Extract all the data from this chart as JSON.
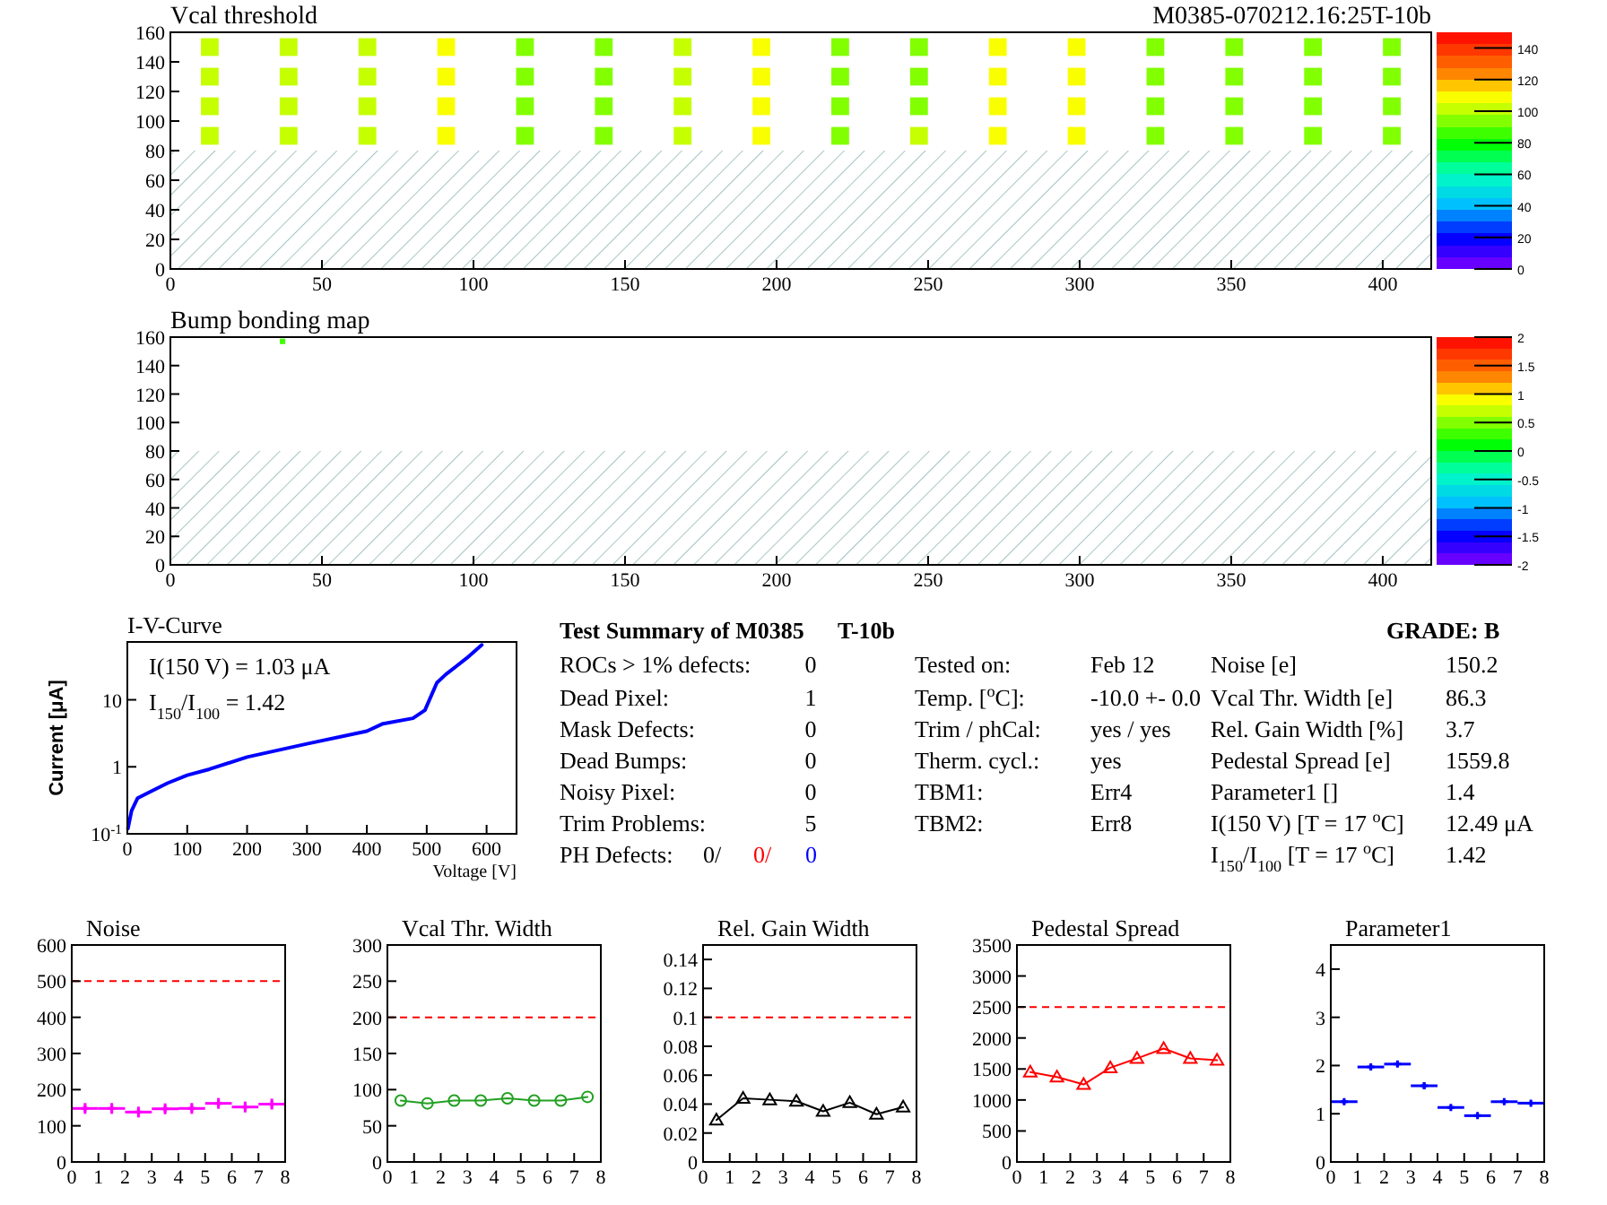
{
  "chart_data": [
    {
      "type": "scatter",
      "title": "Vcal threshold",
      "subtitle": "M0385-070212.16:25T-10b",
      "xlim": [
        0,
        416
      ],
      "ylim": [
        0,
        160
      ],
      "xticks": [
        0,
        50,
        100,
        150,
        200,
        250,
        300,
        350,
        400
      ],
      "yticks": [
        0,
        20,
        40,
        60,
        80,
        100,
        120,
        140,
        160
      ],
      "clim": [
        0,
        150
      ],
      "cticks": [
        0,
        20,
        40,
        60,
        80,
        100,
        120,
        140
      ],
      "marker": "square",
      "x": [
        13,
        39,
        65,
        91,
        117,
        143,
        169,
        195,
        221,
        247,
        273,
        299,
        325,
        351,
        377,
        403,
        13,
        39,
        65,
        91,
        117,
        143,
        169,
        195,
        221,
        247,
        273,
        299,
        325,
        351,
        377,
        403,
        13,
        39,
        65,
        91,
        117,
        143,
        169,
        195,
        221,
        247,
        273,
        299,
        325,
        351,
        377,
        403,
        13,
        39,
        65,
        91,
        117,
        143,
        169,
        195,
        221,
        247,
        273,
        299,
        325,
        351,
        377,
        403
      ],
      "values": [
        150,
        150,
        150,
        150,
        150,
        150,
        150,
        150,
        150,
        150,
        150,
        150,
        150,
        150,
        150,
        150,
        130,
        130,
        130,
        130,
        130,
        130,
        130,
        130,
        130,
        130,
        130,
        130,
        130,
        130,
        130,
        130,
        110,
        110,
        110,
        110,
        110,
        110,
        110,
        110,
        110,
        110,
        110,
        110,
        110,
        110,
        110,
        110,
        90,
        90,
        90,
        90,
        90,
        90,
        90,
        90,
        90,
        90,
        90,
        90,
        90,
        90,
        90,
        90
      ],
      "cvalues": [
        100,
        99,
        102,
        107,
        92,
        91,
        100,
        107,
        96,
        97,
        107,
        112,
        93,
        92,
        95,
        96,
        99,
        98,
        101,
        106,
        91,
        90,
        99,
        106,
        95,
        96,
        106,
        111,
        92,
        91,
        94,
        95,
        100,
        98,
        102,
        107,
        91,
        91,
        100,
        106,
        96,
        97,
        107,
        111,
        92,
        92,
        95,
        96,
        101,
        99,
        103,
        108,
        92,
        92,
        101,
        107,
        97,
        98,
        108,
        112,
        93,
        93,
        96,
        97
      ],
      "bands": [
        {
          "axis": "y",
          "from": 0,
          "to": 80,
          "color": "#a8c4c4"
        }
      ]
    },
    {
      "type": "scatter",
      "title": "Bump bonding map",
      "xlim": [
        0,
        416
      ],
      "ylim": [
        0,
        160
      ],
      "xticks": [
        0,
        50,
        100,
        150,
        200,
        250,
        300,
        350,
        400
      ],
      "yticks": [
        0,
        20,
        40,
        60,
        80,
        100,
        120,
        140,
        160
      ],
      "clim": [
        -2,
        2
      ],
      "cticks": [
        -2,
        -1.5,
        -1,
        -0.5,
        0,
        0.5,
        1,
        1.5,
        2
      ],
      "marker": "square",
      "x": [
        37
      ],
      "values": [
        157
      ],
      "cvalues": [
        0.3
      ],
      "bands": [
        {
          "axis": "y",
          "from": 0,
          "to": 80,
          "color": "#a8c4c4"
        }
      ]
    },
    {
      "type": "line",
      "title": "I-V-Curve",
      "xlabel": "Voltage [V]",
      "ylabel": "Current [μA]",
      "log": "y",
      "xlim": [
        0,
        650
      ],
      "ylim": [
        0.1,
        73
      ],
      "xticks": [
        0,
        100,
        200,
        300,
        400,
        500,
        600
      ],
      "yticks": [
        {
          "value": 0.1,
          "label": "10$^{-1}$"
        },
        1,
        10
      ],
      "annotations": [
        "I(150 V) = 1.03 μA",
        "I$_{150}$/I$_{100}$ =  1.42"
      ],
      "series": [
        {
          "color": "#0000ff",
          "x": [
            1,
            7,
            17,
            37,
            67,
            100,
            137,
            200,
            300,
            400,
            427,
            477,
            497,
            517,
            532,
            567,
            592
          ],
          "values": [
            0.12,
            0.22,
            0.34,
            0.42,
            0.57,
            0.75,
            0.92,
            1.4,
            2.2,
            3.4,
            4.4,
            5.3,
            7.0,
            18,
            24,
            42,
            66
          ]
        }
      ]
    },
    {
      "type": "other",
      "title": "Test Summary of M0385",
      "subtitle": "T-10b",
      "annotations": [
        "GRADE:  B",
        "ROCs > 1% defects:",
        "Dead Pixel:",
        "Mask Defects:",
        "Dead Bumps:",
        "Noisy Pixel:",
        "Trim Problems:",
        "PH Defects:",
        "0",
        "1",
        "0",
        "0",
        "0",
        "5",
        "0/",
        "0/",
        "0",
        "Tested on:",
        "Temp. [$^{o}$C]:",
        "Trim / phCal:",
        "Therm. cycl.:",
        "TBM1:",
        "TBM2:",
        "Feb 12",
        "-10.0 +- 0.0",
        "yes / yes",
        "yes",
        "Err4",
        "Err8",
        "Noise [e]",
        "Vcal Thr. Width [e]",
        "Rel. Gain Width [%]",
        "Pedestal Spread [e]",
        "Parameter1 []",
        "I(150 V) [T = 17 $^{o}$C]",
        "I$_{150}$/I$_{100}$  [T = 17 $^{o}$C]",
        "150.2",
        "86.3",
        "3.7",
        "1559.8",
        "1.4",
        "12.49 μA",
        "1.42"
      ]
    },
    {
      "type": "scatter",
      "title": "Noise",
      "xlim": [
        0,
        8
      ],
      "ylim": [
        0,
        600
      ],
      "xticks": [
        0,
        1,
        2,
        3,
        4,
        5,
        6,
        7,
        8
      ],
      "yticks": [
        0,
        100,
        200,
        300,
        400,
        500,
        600
      ],
      "ref_lines": [
        {
          "axis": "y",
          "value": 500,
          "color": "#ff0000",
          "line_style": "dashed"
        }
      ],
      "marker": "cross",
      "x": [
        0.5,
        1.5,
        2.5,
        3.5,
        4.5,
        5.5,
        6.5,
        7.5
      ],
      "values": [
        148,
        148,
        138,
        147,
        148,
        162,
        152,
        160
      ],
      "color": "#ff00ff",
      "errors": [
        15,
        15,
        15,
        15,
        15,
        15,
        15,
        15
      ],
      "xerrors": [
        0.5,
        0.5,
        0.5,
        0.5,
        0.5,
        0.5,
        0.5,
        0.5
      ]
    },
    {
      "type": "line",
      "title": "Vcal Thr. Width",
      "xlim": [
        0,
        8
      ],
      "ylim": [
        0,
        300
      ],
      "xticks": [
        0,
        1,
        2,
        3,
        4,
        5,
        6,
        7,
        8
      ],
      "yticks": [
        0,
        50,
        100,
        150,
        200,
        250,
        300
      ],
      "marker": "circle",
      "ref_lines": [
        {
          "axis": "y",
          "value": 200,
          "color": "#ff0000",
          "line_style": "dashed"
        }
      ],
      "x": [
        0.5,
        1.5,
        2.5,
        3.5,
        4.5,
        5.5,
        6.5,
        7.5
      ],
      "values": [
        85,
        81,
        85,
        85,
        88,
        85,
        85,
        90
      ],
      "color": "#22a022"
    },
    {
      "type": "line",
      "title": "Rel. Gain Width",
      "xlim": [
        0,
        8
      ],
      "ylim": [
        0,
        0.15
      ],
      "xticks": [
        0,
        1,
        2,
        3,
        4,
        5,
        6,
        7,
        8
      ],
      "yticks": [
        0,
        0.02,
        0.04,
        0.06,
        0.08,
        0.1,
        0.12,
        0.14
      ],
      "marker": "triangle",
      "ref_lines": [
        {
          "axis": "y",
          "value": 0.1,
          "color": "#ff0000",
          "line_style": "dashed"
        }
      ],
      "x": [
        0.5,
        1.5,
        2.5,
        3.5,
        4.5,
        5.5,
        6.5,
        7.5
      ],
      "values": [
        0.029,
        0.044,
        0.043,
        0.042,
        0.035,
        0.041,
        0.033,
        0.038
      ],
      "color": "#000000"
    },
    {
      "type": "line",
      "title": "Pedestal Spread",
      "xlim": [
        0,
        8
      ],
      "ylim": [
        0,
        3500
      ],
      "xticks": [
        0,
        1,
        2,
        3,
        4,
        5,
        6,
        7,
        8
      ],
      "yticks": [
        0,
        500,
        1000,
        1500,
        2000,
        2500,
        3000,
        3500
      ],
      "marker": "triangle",
      "ref_lines": [
        {
          "axis": "y",
          "value": 2500,
          "color": "#ff0000",
          "line_style": "dashed"
        }
      ],
      "x": [
        0.5,
        1.5,
        2.5,
        3.5,
        4.5,
        5.5,
        6.5,
        7.5
      ],
      "values": [
        1450,
        1370,
        1250,
        1520,
        1670,
        1830,
        1670,
        1640
      ],
      "color": "#ff0000"
    },
    {
      "type": "scatter",
      "title": "Parameter1",
      "xlim": [
        0,
        8
      ],
      "ylim": [
        0,
        4.5
      ],
      "xticks": [
        0,
        1,
        2,
        3,
        4,
        5,
        6,
        7,
        8
      ],
      "yticks": [
        0,
        1,
        2,
        3,
        4
      ],
      "marker": "cross",
      "x": [
        0.5,
        1.5,
        2.5,
        3.5,
        4.5,
        5.5,
        6.5,
        7.5
      ],
      "values": [
        1.25,
        1.97,
        2.03,
        1.58,
        1.13,
        0.96,
        1.25,
        1.22
      ],
      "color": "#0000ff",
      "errors": [
        0.05,
        0.05,
        0.05,
        0.07,
        0.04,
        0.04,
        0.04,
        0.04
      ],
      "xerrors": [
        0.5,
        0.5,
        0.5,
        0.5,
        0.5,
        0.5,
        0.5,
        0.5
      ]
    }
  ]
}
